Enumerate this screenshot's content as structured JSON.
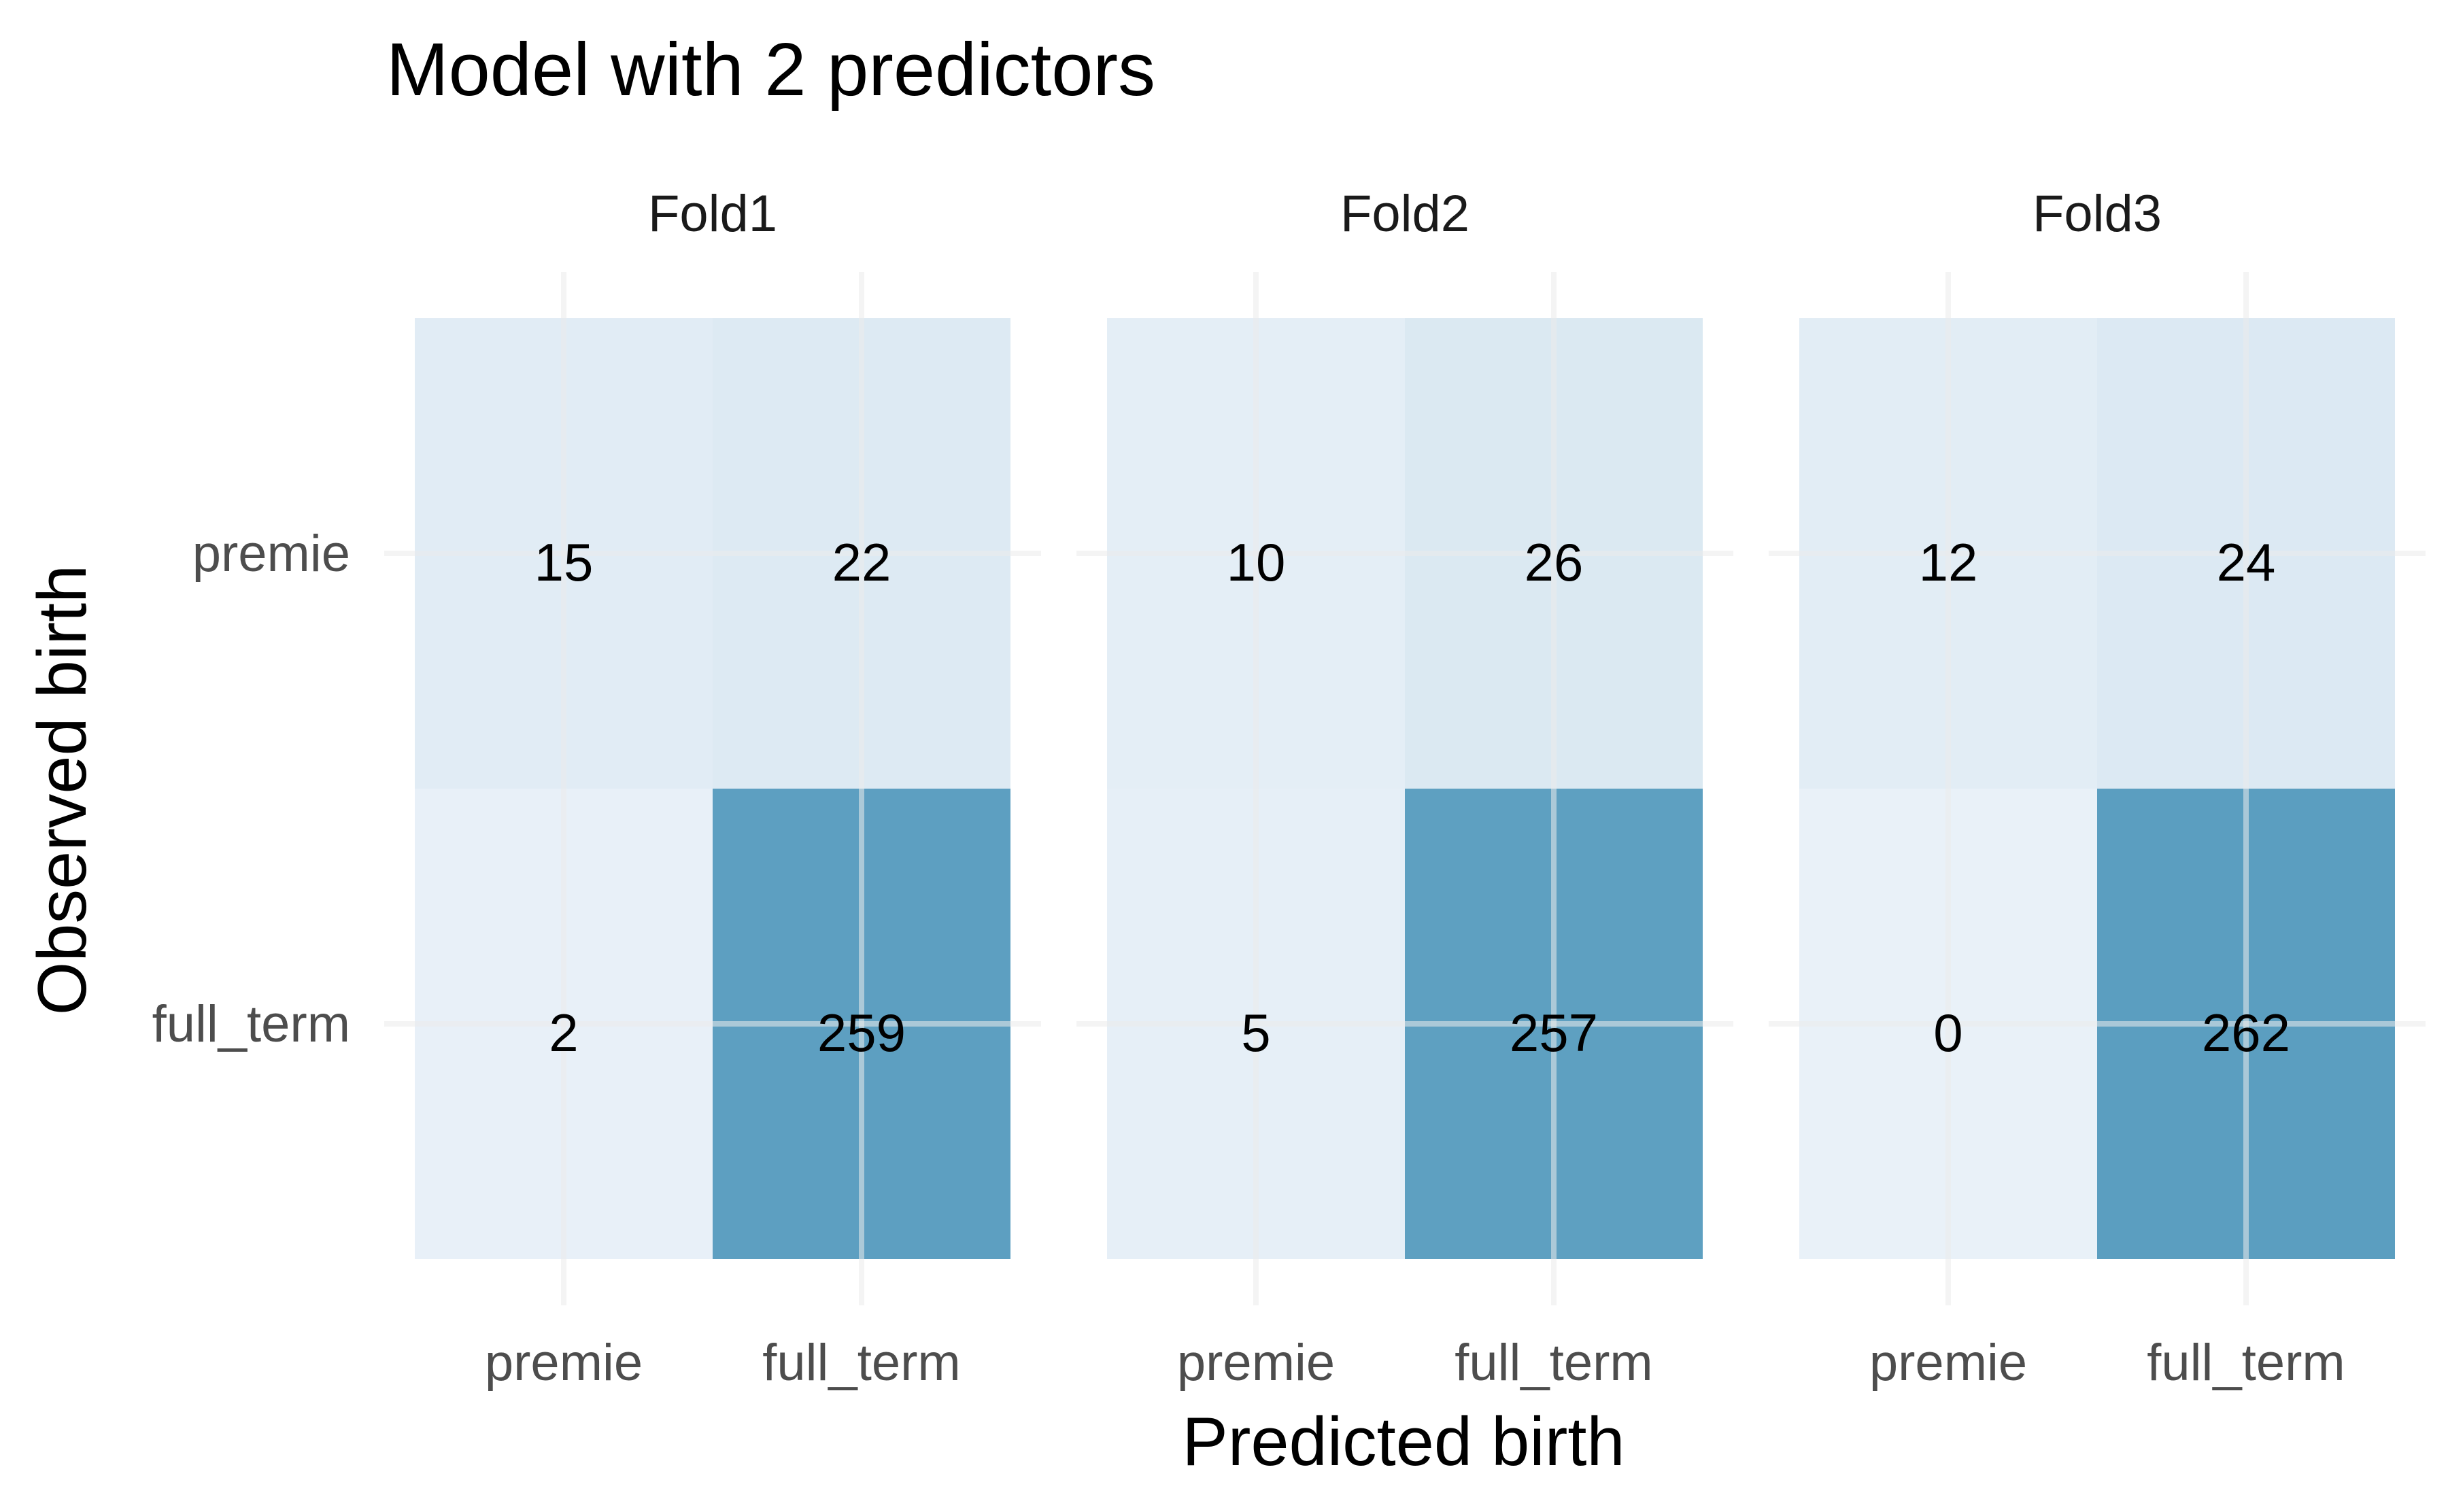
{
  "chart_data": {
    "type": "heatmap",
    "title": "Model with 2 predictors",
    "xlabel": "Predicted birth",
    "ylabel": "Observed birth",
    "x_categories": [
      "premie",
      "full_term"
    ],
    "y_categories": [
      "premie",
      "full_term"
    ],
    "grid": true,
    "legend": "none",
    "colors": {
      "low": "#e9f1f8",
      "high": "#5b9ec0",
      "grid": "#ebebeb"
    },
    "panels": [
      {
        "name": "Fold1",
        "cells": [
          {
            "observed": "premie",
            "predicted": "premie",
            "count": 15
          },
          {
            "observed": "premie",
            "predicted": "full_term",
            "count": 22
          },
          {
            "observed": "full_term",
            "predicted": "premie",
            "count": 2
          },
          {
            "observed": "full_term",
            "predicted": "full_term",
            "count": 259
          }
        ]
      },
      {
        "name": "Fold2",
        "cells": [
          {
            "observed": "premie",
            "predicted": "premie",
            "count": 10
          },
          {
            "observed": "premie",
            "predicted": "full_term",
            "count": 26
          },
          {
            "observed": "full_term",
            "predicted": "premie",
            "count": 5
          },
          {
            "observed": "full_term",
            "predicted": "full_term",
            "count": 257
          }
        ]
      },
      {
        "name": "Fold3",
        "cells": [
          {
            "observed": "premie",
            "predicted": "premie",
            "count": 12
          },
          {
            "observed": "premie",
            "predicted": "full_term",
            "count": 24
          },
          {
            "observed": "full_term",
            "predicted": "premie",
            "count": 0
          },
          {
            "observed": "full_term",
            "predicted": "full_term",
            "count": 262
          }
        ]
      }
    ]
  }
}
